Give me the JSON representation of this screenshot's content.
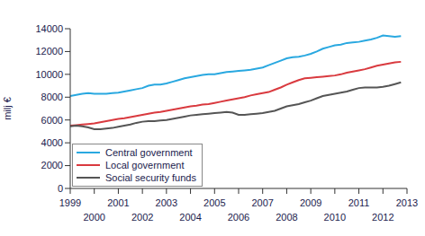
{
  "chart_data": {
    "type": "line",
    "y_label": "milj €",
    "x": [
      1999,
      1999.25,
      1999.5,
      1999.75,
      2000,
      2000.25,
      2000.5,
      2000.75,
      2001,
      2001.25,
      2001.5,
      2001.75,
      2002,
      2002.25,
      2002.5,
      2002.75,
      2003,
      2003.25,
      2003.5,
      2003.75,
      2004,
      2004.25,
      2004.5,
      2004.75,
      2005,
      2005.25,
      2005.5,
      2005.75,
      2006,
      2006.25,
      2006.5,
      2006.75,
      2007,
      2007.25,
      2007.5,
      2007.75,
      2008,
      2008.25,
      2008.5,
      2008.75,
      2009,
      2009.25,
      2009.5,
      2009.75,
      2010,
      2010.25,
      2010.5,
      2010.75,
      2011,
      2011.25,
      2011.5,
      2011.75,
      2012,
      2012.25,
      2012.5,
      2012.75
    ],
    "series": [
      {
        "name": "Central government",
        "color": "#29a8e0",
        "values": [
          8100,
          8200,
          8300,
          8350,
          8300,
          8300,
          8300,
          8350,
          8400,
          8500,
          8600,
          8700,
          8800,
          9000,
          9100,
          9100,
          9200,
          9350,
          9500,
          9650,
          9750,
          9850,
          9950,
          10000,
          10000,
          10100,
          10200,
          10250,
          10300,
          10350,
          10400,
          10500,
          10600,
          10800,
          11000,
          11200,
          11400,
          11500,
          11550,
          11650,
          11800,
          12000,
          12250,
          12400,
          12550,
          12600,
          12750,
          12800,
          12850,
          12950,
          13050,
          13200,
          13400,
          13350,
          13300,
          13350
        ]
      },
      {
        "name": "Local government",
        "color": "#d93a3f",
        "values": [
          5500,
          5550,
          5600,
          5650,
          5700,
          5800,
          5900,
          6000,
          6100,
          6150,
          6250,
          6350,
          6450,
          6550,
          6650,
          6700,
          6800,
          6900,
          7000,
          7100,
          7200,
          7250,
          7350,
          7400,
          7500,
          7600,
          7700,
          7800,
          7900,
          8000,
          8150,
          8250,
          8350,
          8450,
          8650,
          8850,
          9100,
          9300,
          9500,
          9650,
          9700,
          9750,
          9800,
          9850,
          9900,
          10000,
          10150,
          10250,
          10350,
          10450,
          10600,
          10750,
          10850,
          10950,
          11050,
          11100
        ]
      },
      {
        "name": "Social security funds",
        "color": "#555555",
        "values": [
          5450,
          5500,
          5450,
          5350,
          5200,
          5200,
          5250,
          5300,
          5400,
          5500,
          5600,
          5750,
          5850,
          5900,
          5900,
          5950,
          6000,
          6100,
          6200,
          6300,
          6400,
          6450,
          6500,
          6550,
          6600,
          6650,
          6700,
          6650,
          6450,
          6450,
          6500,
          6550,
          6600,
          6700,
          6800,
          7000,
          7200,
          7300,
          7400,
          7550,
          7700,
          7900,
          8100,
          8200,
          8300,
          8400,
          8500,
          8650,
          8800,
          8850,
          8850,
          8850,
          8900,
          9000,
          9150,
          9300
        ]
      }
    ],
    "xlim": [
      1999,
      2013
    ],
    "xticks": [
      1999,
      2000,
      2001,
      2002,
      2003,
      2004,
      2005,
      2006,
      2007,
      2008,
      2009,
      2010,
      2011,
      2012,
      2013
    ],
    "ylim": [
      0,
      14000
    ],
    "yticks": [
      0,
      2000,
      4000,
      6000,
      8000,
      10000,
      12000,
      14000
    ],
    "grid": false,
    "legend": "lower left"
  }
}
